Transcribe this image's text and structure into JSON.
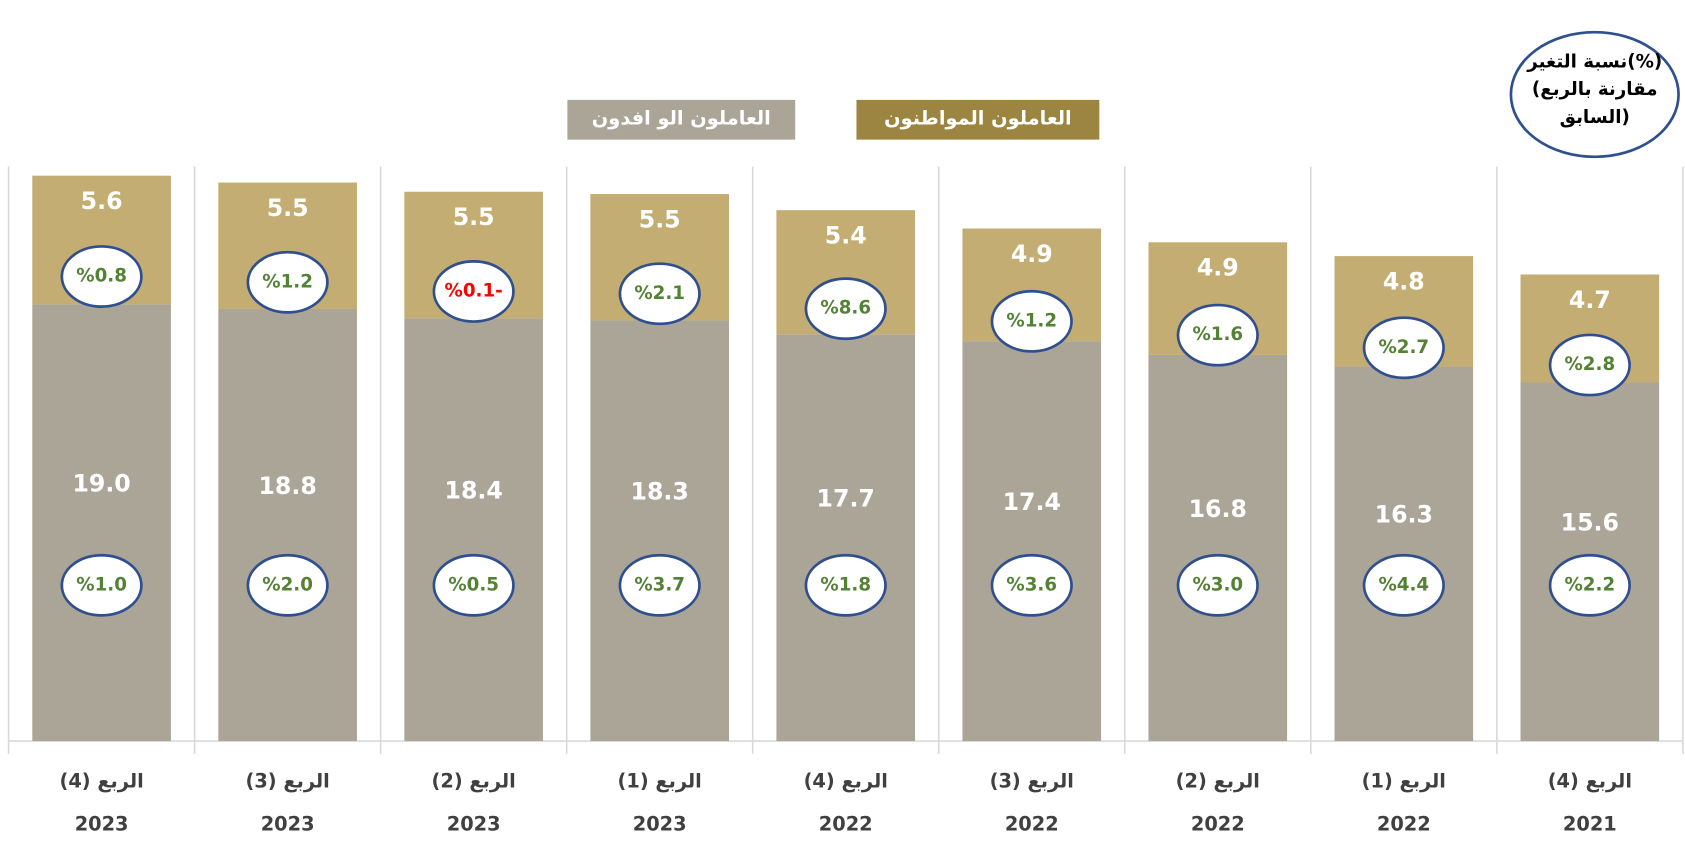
{
  "chart_data": {
    "type": "stacked_bar",
    "note": [
      "نسبة التغير(%)",
      "(مقارنة بالربع",
      "السابق)"
    ],
    "categories": [
      [
        "الربع (4)",
        "2023"
      ],
      [
        "الربع (3)",
        "2023"
      ],
      [
        "الربع (2)",
        "2023"
      ],
      [
        "الربع (1)",
        "2023"
      ],
      [
        "الربع (4)",
        "2022"
      ],
      [
        "الربع (3)",
        "2022"
      ],
      [
        "الربع (2)",
        "2022"
      ],
      [
        "الربع (1)",
        "2022"
      ],
      [
        "الربع (4)",
        "2021"
      ]
    ],
    "series": [
      {
        "name": "العاملون الو افدون",
        "color": "#aba598",
        "values": [
          19.0,
          18.8,
          18.4,
          18.3,
          17.7,
          17.4,
          16.8,
          16.3,
          15.6
        ],
        "value_labels": [
          "19.0",
          "18.8",
          "18.4",
          "18.3",
          "17.7",
          "17.4",
          "16.8",
          "16.3",
          "15.6"
        ],
        "change_values": [
          1.0,
          2.0,
          0.5,
          3.7,
          1.8,
          3.6,
          3.0,
          4.4,
          2.2
        ],
        "change_labels": [
          "%1.0",
          "%2.0",
          "%0.5",
          "%3.7",
          "%1.8",
          "%3.6",
          "%3.0",
          "%4.4",
          "%2.2"
        ]
      },
      {
        "name": "العاملون المواطنون",
        "color": "#c4ad72",
        "legend_color": "#9b8540",
        "values": [
          5.6,
          5.5,
          5.5,
          5.5,
          5.4,
          4.9,
          4.9,
          4.8,
          4.7
        ],
        "value_labels": [
          "5.6",
          "5.5",
          "5.5",
          "5.5",
          "5.4",
          "4.9",
          "4.9",
          "4.8",
          "4.7"
        ],
        "change_values": [
          0.8,
          1.2,
          -0.1,
          2.1,
          8.6,
          1.2,
          1.6,
          2.7,
          2.8
        ],
        "change_labels": [
          "%0.8",
          "%1.2",
          "%0.1-",
          "%2.1",
          "%8.6",
          "%1.2",
          "%1.6",
          "%2.7",
          "%2.8"
        ]
      }
    ],
    "positive_color": "#548235",
    "negative_color": "#ff0000",
    "ylim": [
      0,
      25
    ]
  }
}
